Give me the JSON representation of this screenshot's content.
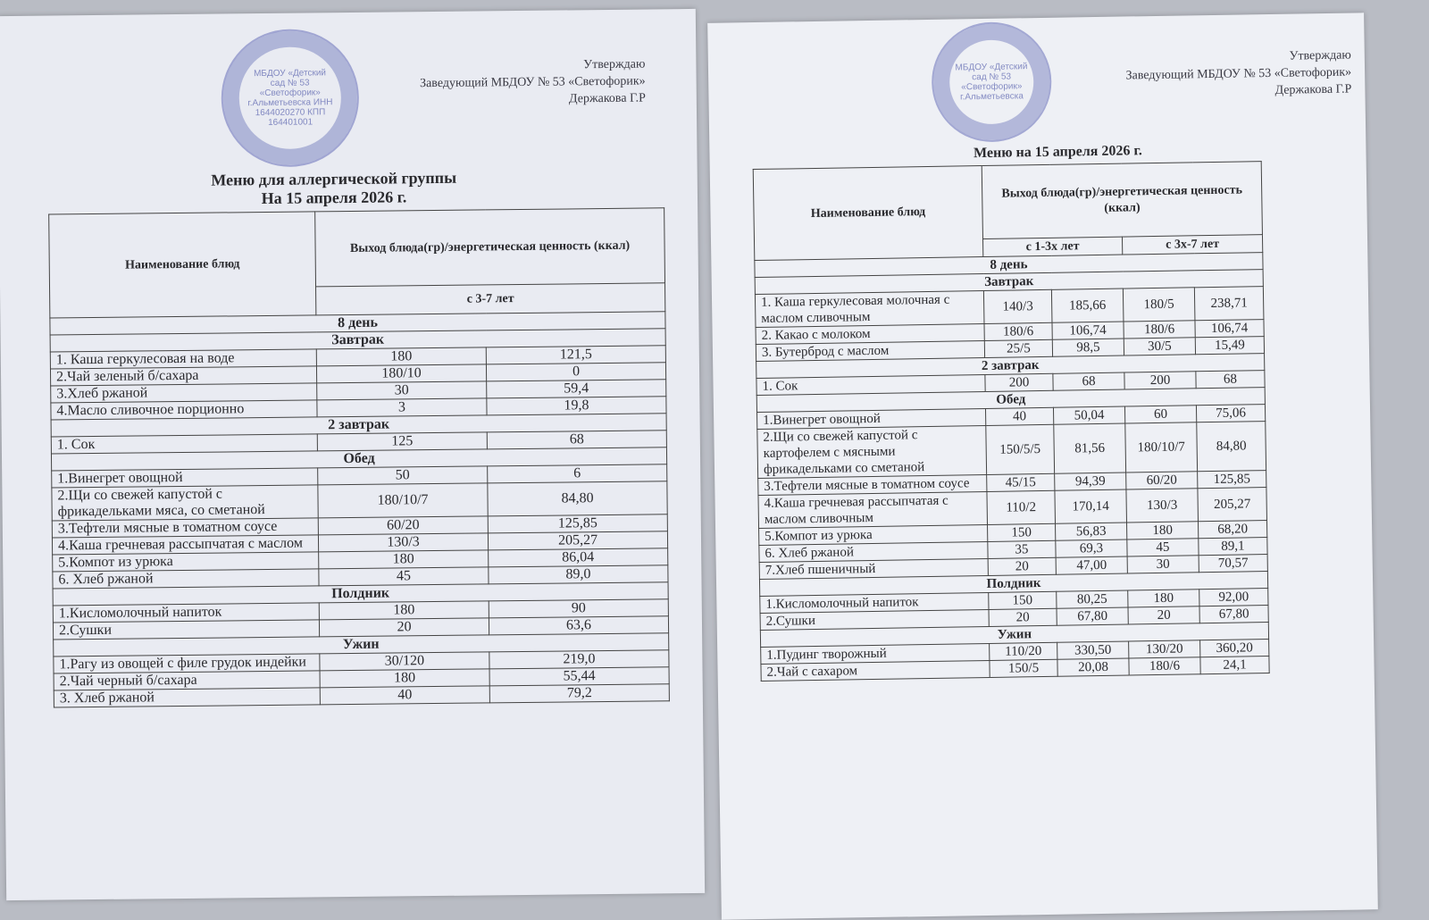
{
  "left": {
    "approve": [
      "Утверждаю",
      "Заведующий МБДОУ № 53 «Светофорик»",
      "Держакова Г.Р"
    ],
    "stamp_text": "МБДОУ «Детский сад № 53 «Светофорик» г.Альметьевска ИНН 1644020270 КПП 164401001",
    "title": [
      "Меню для аллергической группы",
      "На 15 апреля 2026 г."
    ],
    "header": {
      "name": "Наименование блюд",
      "output": "Выход блюда(гр)/энергетическая ценность (ккал)",
      "age": "с 3-7 лет"
    },
    "rows": [
      {
        "section": "8  день"
      },
      {
        "section": "Завтрак"
      },
      {
        "cells": [
          "1. Каша геркулесовая на воде",
          "180",
          "121,5"
        ]
      },
      {
        "cells": [
          "2.Чай зеленый б/сахара",
          "180/10",
          "0"
        ]
      },
      {
        "cells": [
          "3.Хлеб ржаной",
          "30",
          "59,4"
        ]
      },
      {
        "cells": [
          "4.Масло сливочное порционно",
          "3",
          "19,8"
        ]
      },
      {
        "section": "2 завтрак"
      },
      {
        "cells": [
          "1. Сок",
          "125",
          "68"
        ]
      },
      {
        "section": "Обед"
      },
      {
        "cells": [
          "1.Винегрет овощной",
          "50",
          "6"
        ]
      },
      {
        "cells": [
          "2.Щи со свежей капустой с фрикадельками мяса, со сметаной",
          "180/10/7",
          "84,80"
        ]
      },
      {
        "cells": [
          "3.Тефтели мясные в томатном соусе",
          "60/20",
          "125,85"
        ]
      },
      {
        "cells": [
          "4.Каша гречневая рассыпчатая с маслом",
          "130/3",
          "205,27"
        ]
      },
      {
        "cells": [
          "5.Компот из урюка",
          "180",
          "86,04"
        ]
      },
      {
        "cells": [
          "6. Хлеб ржаной",
          "45",
          "89,0"
        ]
      },
      {
        "section": "Полдник"
      },
      {
        "cells": [
          "1.Кисломолочный напиток",
          "180",
          "90"
        ]
      },
      {
        "cells": [
          "2.Сушки",
          "20",
          "63,6"
        ]
      },
      {
        "section": "Ужин"
      },
      {
        "cells": [
          "1.Рагу из овощей с филе грудок индейки",
          "30/120",
          "219,0"
        ]
      },
      {
        "cells": [
          "2.Чай черный б/сахара",
          "180",
          "55,44"
        ]
      },
      {
        "cells": [
          "3. Хлеб ржаной",
          "40",
          "79,2"
        ]
      }
    ]
  },
  "right": {
    "approve": [
      "Утверждаю",
      "Заведующий МБДОУ № 53 «Светофорик»",
      "Держакова Г.Р"
    ],
    "stamp_text": "МБДОУ «Детский сад № 53 «Светофорик» г.Альметьевска",
    "title": [
      "Меню на 15 апреля 2026 г."
    ],
    "header": {
      "name": "Наименование блюд",
      "output": "Выход блюда(гр)/энергетическая ценность (ккал)",
      "age1": "с 1-3х лет",
      "age2": "с 3х-7 лет"
    },
    "rows": [
      {
        "section": "8  день"
      },
      {
        "section": "Завтрак"
      },
      {
        "cells": [
          "1. Каша геркулесовая молочная с маслом сливочным",
          "140/3",
          "185,66",
          "180/5",
          "238,71"
        ]
      },
      {
        "cells": [
          "2. Какао с молоком",
          "180/6",
          "106,74",
          "180/6",
          "106,74"
        ]
      },
      {
        "cells": [
          "3. Бутерброд с маслом",
          "25/5",
          "98,5",
          "30/5",
          "15,49"
        ]
      },
      {
        "section": "2 завтрак"
      },
      {
        "cells": [
          "1. Сок",
          "200",
          "68",
          "200",
          "68"
        ]
      },
      {
        "section": "Обед"
      },
      {
        "cells": [
          "1.Винегрет овощной",
          "40",
          "50,04",
          "60",
          "75,06"
        ]
      },
      {
        "cells": [
          "2.Щи со свежей капустой с картофелем с мясными фрикадельками со сметаной",
          "150/5/5",
          "81,56",
          "180/10/7",
          "84,80"
        ]
      },
      {
        "cells": [
          "3.Тефтели мясные в томатном соусе",
          "45/15",
          "94,39",
          "60/20",
          "125,85"
        ]
      },
      {
        "cells": [
          "4.Каша гречневая рассыпчатая с маслом сливочным",
          "110/2",
          "170,14",
          "130/3",
          "205,27"
        ]
      },
      {
        "cells": [
          "5.Компот из урюка",
          "150",
          "56,83",
          "180",
          "68,20"
        ]
      },
      {
        "cells": [
          "6. Хлеб ржаной",
          "35",
          "69,3",
          "45",
          "89,1"
        ]
      },
      {
        "cells": [
          "7.Хлеб пшеничный",
          "20",
          "47,00",
          "30",
          "70,57"
        ]
      },
      {
        "section": "Полдник"
      },
      {
        "cells": [
          "1.Кисломолочный напиток",
          "150",
          "80,25",
          "180",
          "92,00"
        ]
      },
      {
        "cells": [
          "2.Сушки",
          "20",
          "67,80",
          "20",
          "67,80"
        ]
      },
      {
        "section": "Ужин"
      },
      {
        "cells": [
          "1.Пудинг творожный",
          "110/20",
          "330,50",
          "130/20",
          "360,20"
        ]
      },
      {
        "cells": [
          "2.Чай с сахаром",
          "150/5",
          "20,08",
          "180/6",
          "24,1"
        ]
      }
    ]
  },
  "colors": {
    "stamp": "#4650aa",
    "paper": "#eceef4",
    "background": "#b9bcc4"
  }
}
